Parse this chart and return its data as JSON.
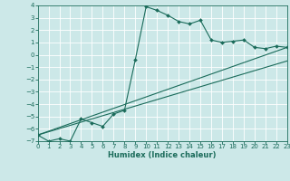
{
  "xlabel": "Humidex (Indice chaleur)",
  "bg_color": "#cce8e8",
  "grid_color": "#b8d8d8",
  "line_color": "#1a6b5a",
  "xlim": [
    0,
    23
  ],
  "ylim": [
    -7,
    4
  ],
  "xticks": [
    0,
    1,
    2,
    3,
    4,
    5,
    6,
    7,
    8,
    9,
    10,
    11,
    12,
    13,
    14,
    15,
    16,
    17,
    18,
    19,
    20,
    21,
    22,
    23
  ],
  "yticks": [
    -7,
    -6,
    -5,
    -4,
    -3,
    -2,
    -1,
    0,
    1,
    2,
    3,
    4
  ],
  "curve_x": [
    0,
    1,
    2,
    3,
    4,
    5,
    6,
    7,
    8,
    9,
    10,
    11,
    12,
    13,
    14,
    15,
    16,
    17,
    18,
    19,
    20,
    21,
    22,
    23
  ],
  "curve_y": [
    -6.5,
    -7.0,
    -6.8,
    -7.0,
    -5.2,
    -5.5,
    -5.8,
    -4.8,
    -4.5,
    -0.4,
    3.9,
    3.6,
    3.2,
    2.7,
    2.5,
    2.8,
    1.2,
    1.0,
    1.1,
    1.2,
    0.6,
    0.5,
    0.7,
    0.6
  ],
  "trend1_x": [
    0,
    23
  ],
  "trend1_y": [
    -6.5,
    0.6
  ],
  "trend2_x": [
    0,
    23
  ],
  "trend2_y": [
    -6.5,
    -0.5
  ],
  "tick_fontsize": 5,
  "xlabel_fontsize": 6,
  "lw": 0.8,
  "ms": 2.0
}
